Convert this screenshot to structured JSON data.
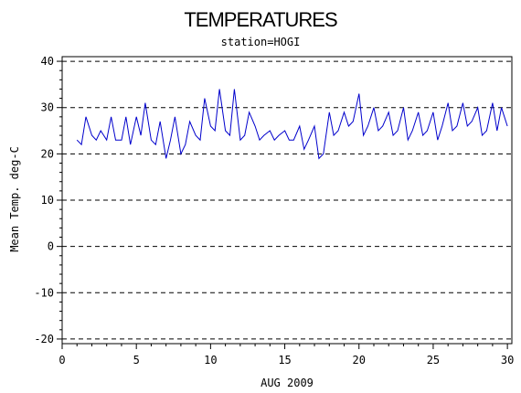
{
  "chart_data": {
    "type": "line",
    "title": "TEMPERATURES",
    "subtitle": "station=HOGI",
    "xlabel": "AUG 2009",
    "ylabel": "Mean Temp. deg-C",
    "xlim": [
      0,
      30.3
    ],
    "ylim": [
      -21,
      41
    ],
    "xticks": [
      0,
      5,
      10,
      15,
      20,
      25,
      30
    ],
    "yticks": [
      -20,
      -10,
      0,
      10,
      20,
      30,
      40
    ],
    "grid": "horizontal dashed at major y ticks",
    "line_color": "#0000cc",
    "series": [
      {
        "x": [
          1.0,
          1.3,
          1.6,
          2.0,
          2.3,
          2.6,
          3.0,
          3.3,
          3.6,
          4.0,
          4.3,
          4.6,
          5.0,
          5.3,
          5.6,
          6.0,
          6.3,
          6.6,
          7.0,
          7.3,
          7.6,
          8.0,
          8.3,
          8.6,
          9.0,
          9.3,
          9.6,
          10.0,
          10.3,
          10.6,
          11.0,
          11.3,
          11.6,
          12.0,
          12.3,
          12.6,
          13.0,
          13.3,
          13.6,
          14.0,
          14.3,
          14.6,
          15.0,
          15.3,
          15.6,
          16.0,
          16.3,
          16.6,
          17.0,
          17.3,
          17.6,
          18.0,
          18.3,
          18.6,
          19.0,
          19.3,
          19.6,
          20.0,
          20.3,
          20.6,
          21.0,
          21.3,
          21.6,
          22.0,
          22.3,
          22.6,
          23.0,
          23.3,
          23.6,
          24.0,
          24.3,
          24.6,
          25.0,
          25.3,
          25.6,
          26.0,
          26.3,
          26.6,
          27.0,
          27.3,
          27.6,
          28.0,
          28.3,
          28.6,
          29.0,
          29.3,
          29.6,
          30.0
        ],
        "y": [
          23,
          22,
          28,
          24,
          23,
          25,
          23,
          28,
          23,
          23,
          28,
          22,
          28,
          24,
          31,
          23,
          22,
          27,
          19,
          23,
          28,
          20,
          22,
          27,
          24,
          23,
          32,
          26,
          25,
          34,
          25,
          24,
          34,
          23,
          24,
          29,
          26,
          23,
          24,
          25,
          23,
          24,
          25,
          23,
          23,
          26,
          21,
          23,
          26,
          19,
          20,
          29,
          24,
          25,
          29,
          26,
          27,
          33,
          24,
          26,
          30,
          25,
          26,
          29,
          24,
          25,
          30,
          23,
          25,
          29,
          24,
          25,
          29,
          23,
          26,
          31,
          25,
          26,
          31,
          26,
          27,
          30,
          24,
          25,
          31,
          25,
          30,
          26
        ]
      }
    ]
  }
}
